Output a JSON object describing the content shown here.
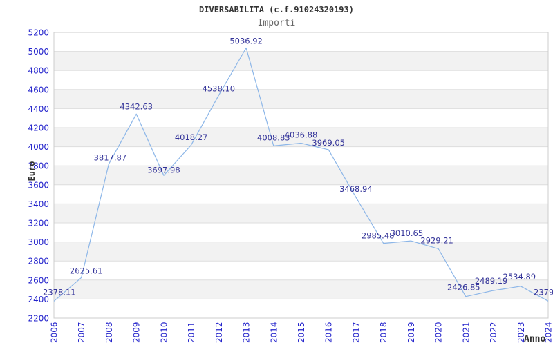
{
  "header": {
    "title": "DIVERSABILITA (c.f.91024320193)",
    "subtitle": "Importi"
  },
  "chart_data": {
    "type": "line",
    "title": "DIVERSABILITA (c.f.91024320193)",
    "subtitle": "Importi",
    "xlabel": "Anno",
    "ylabel": "Euro",
    "categories": [
      "2006",
      "2007",
      "2008",
      "2009",
      "2010",
      "2011",
      "2012",
      "2013",
      "2014",
      "2015",
      "2016",
      "2017",
      "2018",
      "2019",
      "2020",
      "2021",
      "2022",
      "2023",
      "2024"
    ],
    "values": [
      2378.11,
      2625.61,
      3817.87,
      4342.63,
      3697.98,
      4018.27,
      4538.1,
      5036.92,
      4008.83,
      4036.88,
      3969.05,
      3468.94,
      2985.48,
      3010.65,
      2929.21,
      2426.85,
      2489.19,
      2534.89,
      2379.0
    ],
    "point_labels": [
      "2378.11",
      "2625.61",
      "3817.87",
      "4342.63",
      "3697.98",
      "4018.27",
      "4538.10",
      "5036.92",
      "4008.83",
      "4036.88",
      "3969.05",
      "3468.94",
      "2985.48",
      "3010.65",
      "2929.21",
      "2426.85",
      "2489.19",
      "2534.89",
      "2379.0"
    ],
    "ylim": [
      2200,
      5200
    ],
    "ytick_step": 200,
    "yticks": [
      2200,
      2400,
      2600,
      2800,
      3000,
      3200,
      3400,
      3600,
      3800,
      4000,
      4200,
      4400,
      4600,
      4800,
      5000,
      5200
    ],
    "grid": true,
    "legend": false,
    "colors": {
      "line": "#8cb6e8",
      "tick_label": "#2525cc",
      "point_label": "#333399",
      "band": "#f2f2f2",
      "gridline": "#dddddd",
      "border": "#cccccc",
      "title": "#333333",
      "subtitle": "#666666",
      "axis_title": "#333333"
    }
  }
}
